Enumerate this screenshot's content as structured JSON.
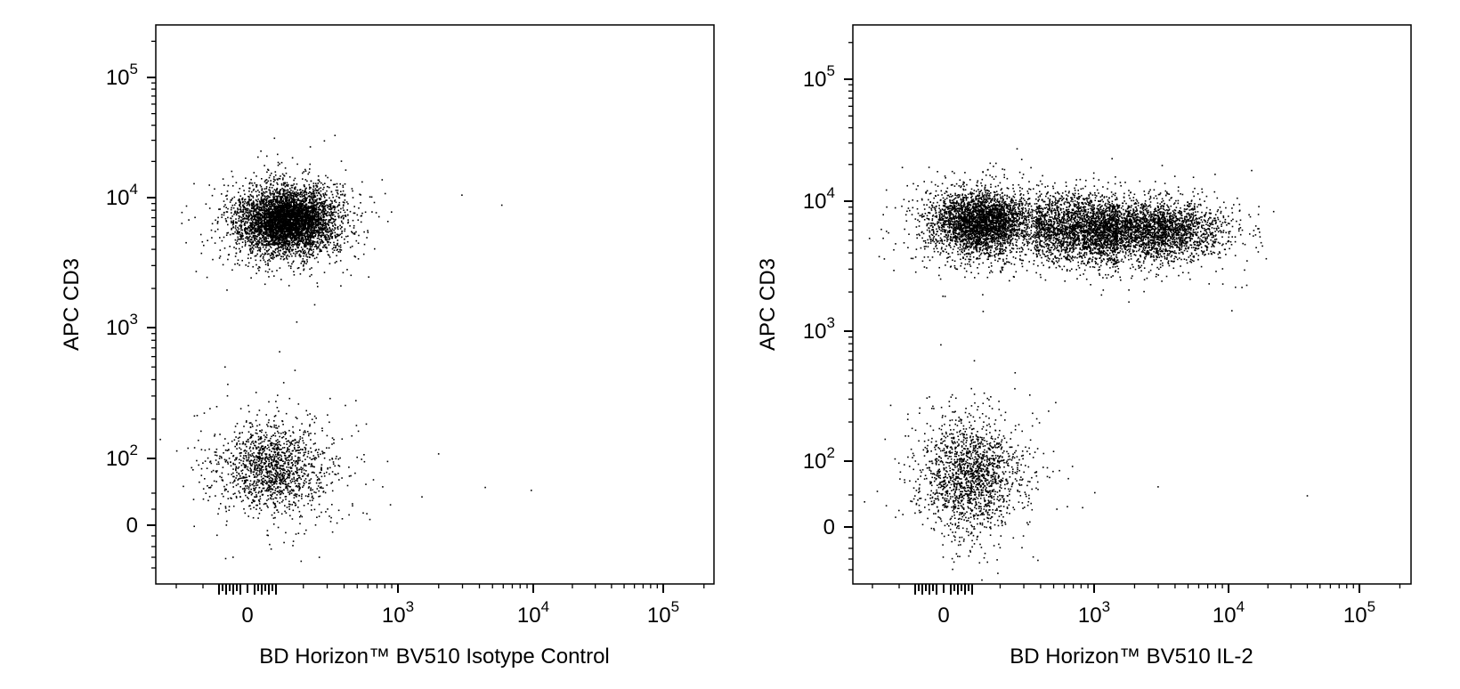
{
  "chart_data": [
    {
      "type": "scatter",
      "scale": "biexponential (logicle)",
      "xlabel": "BD Horizon™ BV510 Isotype Control",
      "ylabel": "APC CD3",
      "x_ticks": [
        "0",
        "10^3",
        "10^4",
        "10^5"
      ],
      "y_ticks": [
        "0",
        "10^2",
        "10^3",
        "10^4",
        "10^5"
      ],
      "populations": [
        {
          "cx": 160,
          "cy": 7500,
          "x_spread": "±100 (0–500)",
          "y_spread": "3000–15000",
          "density": "high",
          "n_points": 5200
        },
        {
          "cx": 80,
          "cy": 80,
          "x_spread": "-100–400",
          "y_spread": "-30–250",
          "density": "medium",
          "n_points": 1500
        }
      ],
      "outliers": [
        [
          3000,
          12000
        ],
        [
          6000,
          10000
        ],
        [
          2000,
          110
        ],
        [
          4500,
          45
        ],
        [
          10000,
          40
        ],
        [
          900,
          95
        ],
        [
          1500,
          30
        ]
      ]
    },
    {
      "type": "scatter",
      "scale": "biexponential (logicle)",
      "xlabel": "BD Horizon™ BV510 IL-2",
      "ylabel": "APC CD3",
      "x_ticks": [
        "0",
        "10^3",
        "10^4",
        "10^5"
      ],
      "y_ticks": [
        "0",
        "10^2",
        "10^3",
        "10^4",
        "10^5"
      ],
      "populations": [
        {
          "cx": 150,
          "cy": 7500,
          "x_spread": "-150–500",
          "y_spread": "3000–15000",
          "density": "high",
          "n_points": 3500
        },
        {
          "x_range": [
            400,
            1500
          ],
          "cy": 6800,
          "y_spread": "3000–12000",
          "density": "medium (bridge)",
          "n_points": 1800
        },
        {
          "cx": 2500,
          "cy": 6500,
          "x_spread": "1000–7000",
          "y_spread": "3000–12000",
          "density": "high",
          "n_points": 3000
        },
        {
          "cx": 100,
          "cy": 70,
          "x_spread": "-100–450",
          "y_spread": "-30–250",
          "density": "medium",
          "n_points": 1700
        }
      ],
      "outliers": [
        [
          3000,
          50
        ],
        [
          40000,
          35
        ],
        [
          800,
          90
        ],
        [
          600,
          250
        ],
        [
          350,
          500
        ],
        [
          1000,
          40
        ]
      ]
    }
  ],
  "panels": [
    {
      "ylabel": "APC CD3",
      "xlabel": "BD Horizon™ BV510 Isotype Control",
      "yticks": [
        {
          "base": "10",
          "exp": "5"
        },
        {
          "base": "10",
          "exp": "4"
        },
        {
          "base": "10",
          "exp": "3"
        },
        {
          "base": "10",
          "exp": "2"
        },
        {
          "base": "0",
          "exp": ""
        }
      ],
      "xticks": [
        {
          "base": "0",
          "exp": ""
        },
        {
          "base": "10",
          "exp": "3"
        },
        {
          "base": "10",
          "exp": "4"
        },
        {
          "base": "10",
          "exp": "5"
        }
      ]
    },
    {
      "ylabel": "APC CD3",
      "xlabel": "BD Horizon™ BV510 IL-2",
      "yticks": [
        {
          "base": "10",
          "exp": "5"
        },
        {
          "base": "10",
          "exp": "4"
        },
        {
          "base": "10",
          "exp": "3"
        },
        {
          "base": "10",
          "exp": "2"
        },
        {
          "base": "0",
          "exp": ""
        }
      ],
      "xticks": [
        {
          "base": "0",
          "exp": ""
        },
        {
          "base": "10",
          "exp": "3"
        },
        {
          "base": "10",
          "exp": "4"
        },
        {
          "base": "10",
          "exp": "5"
        }
      ]
    }
  ]
}
